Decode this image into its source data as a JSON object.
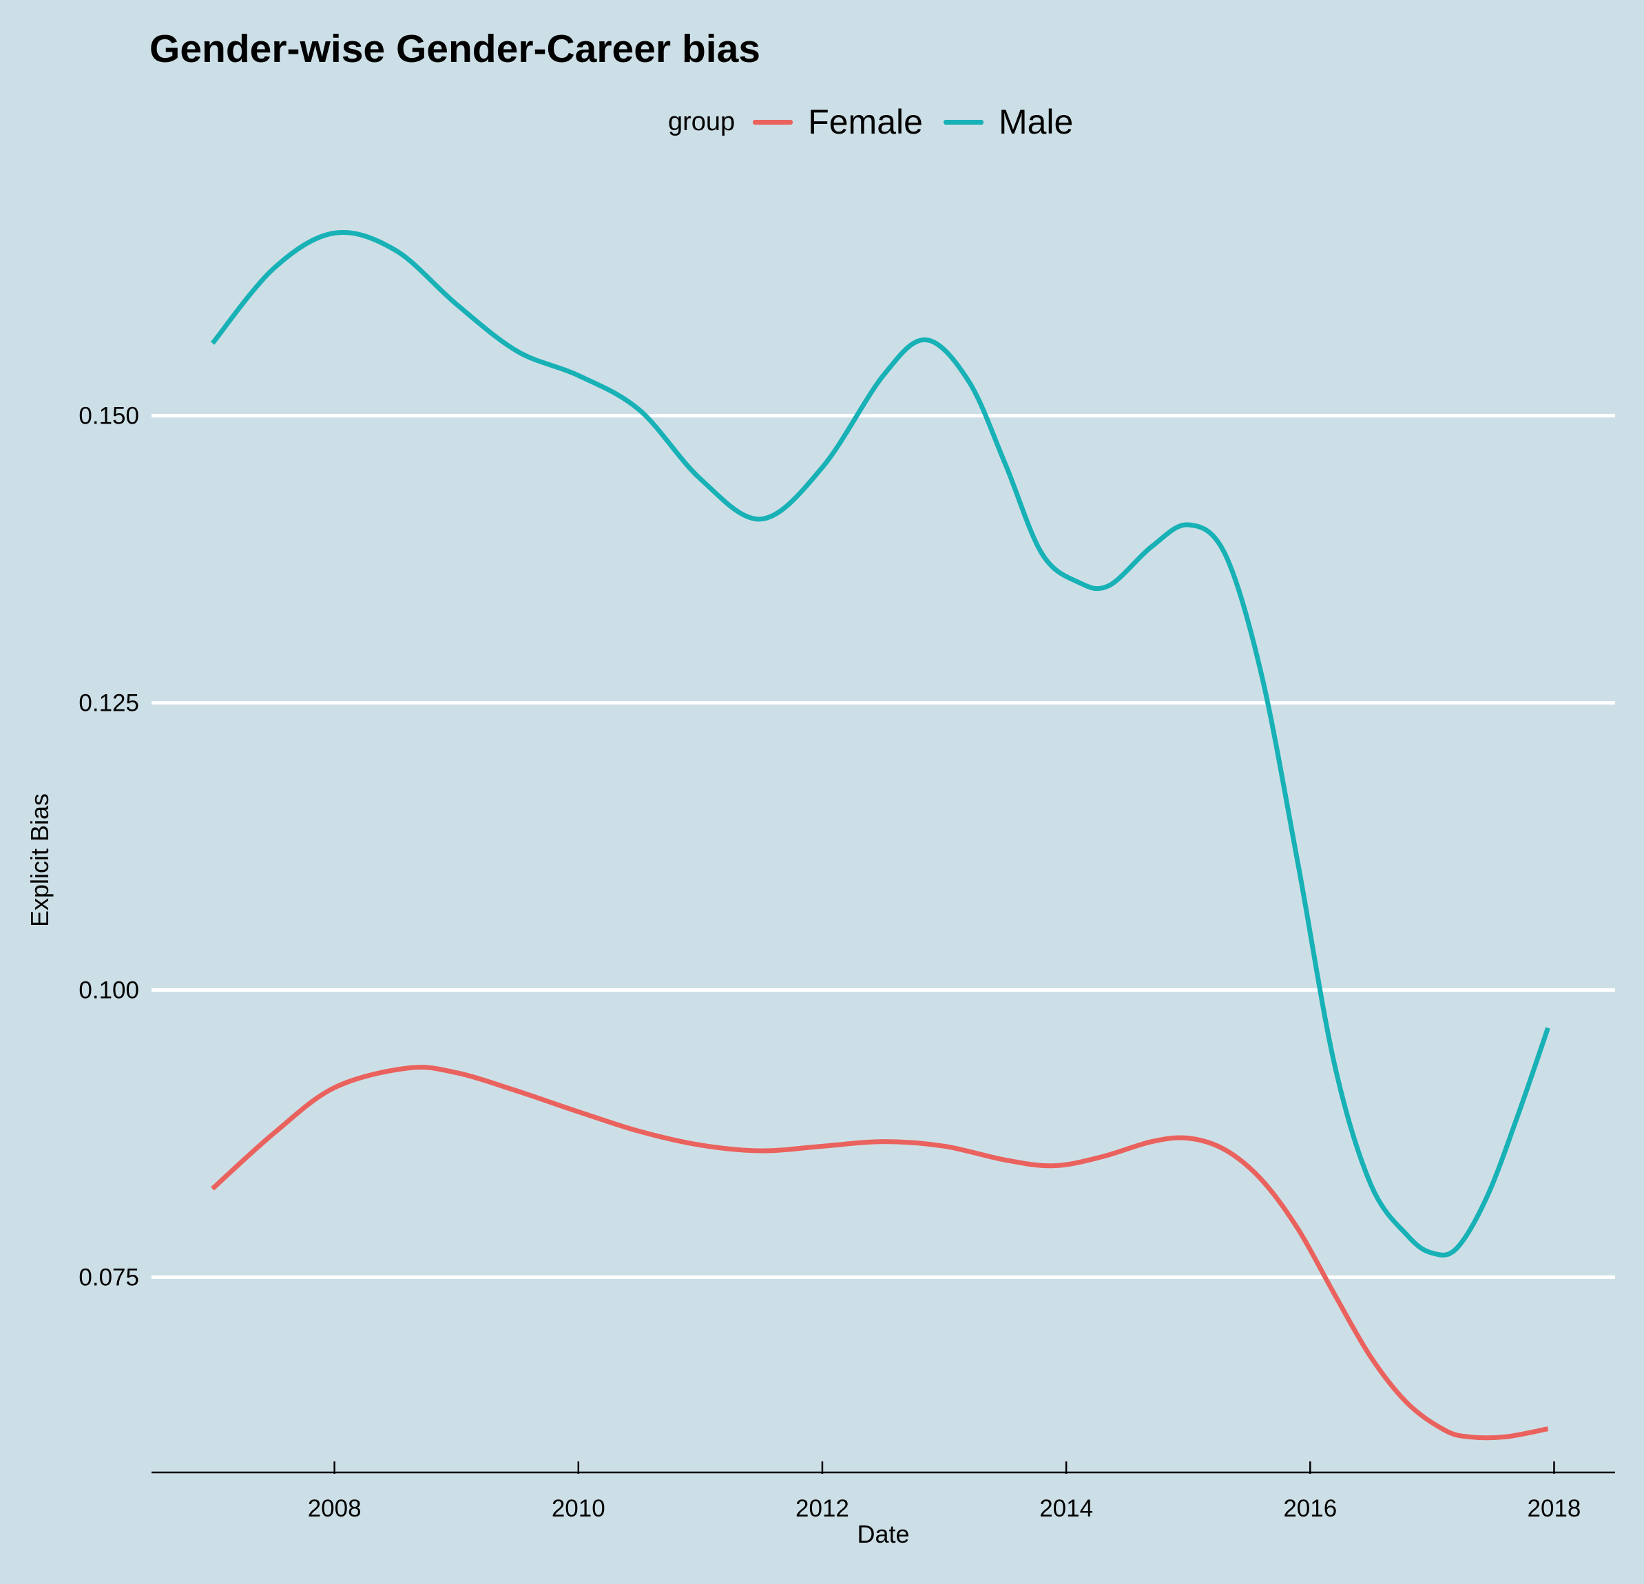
{
  "chart_data": {
    "type": "line",
    "title": "Gender-wise Gender-Career bias",
    "xlabel": "Date",
    "ylabel": "Explicit Bias",
    "legend_title": "group",
    "legend_position": "top",
    "grid": "horizontal major lines only",
    "x_type": "year",
    "xlim": [
      2006.5,
      2018.5
    ],
    "ylim": [
      0.058,
      0.17
    ],
    "x_ticks": [
      2008,
      2010,
      2012,
      2014,
      2016,
      2018
    ],
    "x_tick_labels": [
      "2008",
      "2010",
      "2012",
      "2014",
      "2016",
      "2018"
    ],
    "y_ticks": [
      0.075,
      0.1,
      0.125,
      0.15
    ],
    "y_tick_labels": [
      "0.075",
      "0.100",
      "0.125",
      "0.150"
    ],
    "series": [
      {
        "name": "Female",
        "color": "#ea625d",
        "x": [
          2007.0,
          2007.5,
          2008.0,
          2008.6,
          2009.0,
          2009.5,
          2010.0,
          2010.5,
          2011.0,
          2011.5,
          2012.0,
          2012.5,
          2013.0,
          2013.5,
          2013.9,
          2014.3,
          2014.7,
          2015.0,
          2015.3,
          2015.6,
          2015.9,
          2016.2,
          2016.5,
          2016.8,
          2017.1,
          2017.3,
          2017.6,
          2017.95
        ],
        "y": [
          0.0827,
          0.0875,
          0.0915,
          0.0932,
          0.0928,
          0.0912,
          0.0894,
          0.0877,
          0.0865,
          0.086,
          0.0864,
          0.0868,
          0.0864,
          0.0852,
          0.0847,
          0.0855,
          0.0868,
          0.0871,
          0.0861,
          0.0835,
          0.0792,
          0.0735,
          0.068,
          0.064,
          0.0617,
          0.0611,
          0.0611,
          0.0618
        ]
      },
      {
        "name": "Male",
        "color": "#17b1b6",
        "x": [
          2007.0,
          2007.5,
          2008.0,
          2008.5,
          2009.0,
          2009.5,
          2010.0,
          2010.5,
          2011.0,
          2011.5,
          2012.0,
          2012.5,
          2012.85,
          2013.2,
          2013.5,
          2013.8,
          2014.1,
          2014.35,
          2014.7,
          2015.0,
          2015.3,
          2015.6,
          2015.9,
          2016.2,
          2016.5,
          2016.8,
          2017.0,
          2017.2,
          2017.45,
          2017.7,
          2017.95
        ],
        "y": [
          0.1563,
          0.1628,
          0.1659,
          0.1644,
          0.1597,
          0.1556,
          0.1535,
          0.1505,
          0.1445,
          0.141,
          0.1455,
          0.1535,
          0.1566,
          0.153,
          0.1458,
          0.138,
          0.1355,
          0.1352,
          0.1386,
          0.1405,
          0.138,
          0.1275,
          0.111,
          0.0935,
          0.083,
          0.0786,
          0.0771,
          0.0775,
          0.082,
          0.089,
          0.0967
        ]
      }
    ]
  }
}
